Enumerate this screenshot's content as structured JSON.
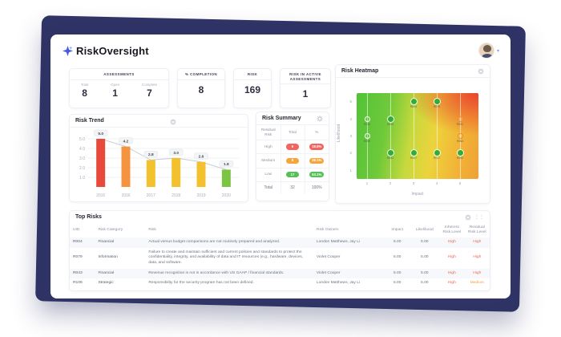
{
  "brand": {
    "name": "RiskOversight"
  },
  "kpis": {
    "assessments": {
      "title": "ASSESSMENTS",
      "items": [
        {
          "label": "Total",
          "value": "8"
        },
        {
          "label": "Open",
          "value": "1"
        },
        {
          "label": "Complete",
          "value": "7"
        }
      ]
    },
    "completion": {
      "title": "% COMPLETION",
      "value": "8"
    },
    "risk": {
      "title": "RISK",
      "value": "169"
    },
    "risk_active": {
      "title": "RISK IN ACTIVE ASSESSMENTS",
      "value": "1"
    }
  },
  "chart_data": [
    {
      "type": "bar",
      "title": "Risk Trend",
      "categories": [
        "2015",
        "2016",
        "2017",
        "2018",
        "2019",
        "2020"
      ],
      "values": [
        5.0,
        4.2,
        2.8,
        3.0,
        2.6,
        1.8
      ],
      "value_labels": [
        "5.0",
        "4.2",
        "2.8",
        "3.0",
        "2.6",
        "1.8"
      ],
      "bar_colors": [
        "#e8493b",
        "#f59440",
        "#f3c12d",
        "#f3c12d",
        "#f3c12d",
        "#7cc443"
      ],
      "ylim": [
        0,
        5.5
      ],
      "yticks": [
        "1.0",
        "2.0",
        "3.0",
        "4.0",
        "5.0"
      ],
      "trend_line": true,
      "trend_line_color": "#c7cbd4",
      "xlabel": "",
      "ylabel": ""
    },
    {
      "type": "scatter",
      "title": "Risk Heatmap",
      "xlabel": "Impact",
      "ylabel": "Likelihood",
      "xticks": [
        "1",
        "2",
        "3",
        "4",
        "5"
      ],
      "yticks": [
        "5",
        "4",
        "3",
        "2",
        "1"
      ],
      "points": [
        {
          "x": 3,
          "y": 5,
          "label": "R004",
          "style": "filled"
        },
        {
          "x": 4,
          "y": 5,
          "label": "R079",
          "style": "filled"
        },
        {
          "x": 1,
          "y": 4,
          "label": "R106",
          "style": "hollow-white"
        },
        {
          "x": 2,
          "y": 4,
          "label": "R043",
          "style": "filled"
        },
        {
          "x": 5,
          "y": 4,
          "label": "R021",
          "style": "hollow-orange"
        },
        {
          "x": 1,
          "y": 3,
          "label": "R058",
          "style": "hollow-white"
        },
        {
          "x": 5,
          "y": 3,
          "label": "R064",
          "style": "hollow-orange"
        },
        {
          "x": 2,
          "y": 2,
          "label": "R032",
          "style": "filled"
        },
        {
          "x": 3,
          "y": 2,
          "label": "R047",
          "style": "filled"
        },
        {
          "x": 4,
          "y": 2,
          "label": "R017",
          "style": "filled"
        },
        {
          "x": 5,
          "y": 2,
          "label": "R092",
          "style": "filled"
        }
      ],
      "point_colors": {
        "filled": "#2fae36",
        "hollow_white": "#ffffff",
        "hollow_orange": "#f08a2c"
      }
    }
  ],
  "risk_summary": {
    "title": "Risk Summary",
    "headers": [
      "Residual Risk",
      "Total",
      "%"
    ],
    "rows": [
      {
        "label": "High",
        "total": "6",
        "pct": "18.8%",
        "color": "#f4645f"
      },
      {
        "label": "Medium",
        "total": "9",
        "pct": "28.1%",
        "color": "#f6a43b"
      },
      {
        "label": "Low",
        "total": "17",
        "pct": "53.1%",
        "color": "#55c054"
      }
    ],
    "total_row": {
      "label": "Total",
      "total": "32",
      "pct": "100%"
    }
  },
  "top_risks": {
    "title": "Top Risks",
    "headers": [
      "UID",
      "Risk Category",
      "Risk",
      "Risk Owners",
      "Impact",
      "Likelihood",
      "Inherent Risk Level",
      "Residual Risk Level"
    ],
    "rows": [
      {
        "uid": "R004",
        "category": "Financial",
        "risk": "Actual versus budget comparisons are not routinely prepared and analyzed.",
        "owners": "London Matthews, Jay Li",
        "impact": "5.00",
        "likelihood": "5.00",
        "inherent": "High",
        "residual": "High"
      },
      {
        "uid": "R079",
        "category": "Information",
        "risk": "Failure to create and maintain sufficient and current policies and standards to protect the confidentiality, integrity, and availability of data and IT resources (e.g., hardware, devices, data, and software.",
        "owners": "Violet Cooper",
        "impact": "5.00",
        "likelihood": "5.00",
        "inherent": "High",
        "residual": "High"
      },
      {
        "uid": "R043",
        "category": "Financial",
        "risk": "Revenue recognition is not in accordance with US GAAP / financial standards.",
        "owners": "Violet Cooper",
        "impact": "5.00",
        "likelihood": "5.00",
        "inherent": "High",
        "residual": "High"
      },
      {
        "uid": "R106",
        "category": "Strategic",
        "risk": "Responsibility for the security program has not been defined.",
        "owners": "London Matthews, Jay Li",
        "impact": "5.00",
        "likelihood": "5.00",
        "inherent": "High",
        "residual": "Medium"
      }
    ],
    "level_colors": {
      "High": "#f0654e",
      "Medium": "#f5a33b"
    }
  }
}
